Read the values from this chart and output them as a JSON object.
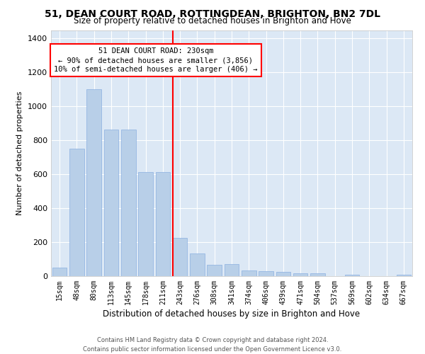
{
  "title": "51, DEAN COURT ROAD, ROTTINGDEAN, BRIGHTON, BN2 7DL",
  "subtitle": "Size of property relative to detached houses in Brighton and Hove",
  "xlabel": "Distribution of detached houses by size in Brighton and Hove",
  "ylabel": "Number of detached properties",
  "bar_values": [
    50,
    750,
    1100,
    865,
    865,
    615,
    615,
    225,
    135,
    65,
    70,
    35,
    30,
    25,
    15,
    15,
    0,
    10,
    0,
    0,
    10
  ],
  "bar_labels": [
    "15sqm",
    "48sqm",
    "80sqm",
    "113sqm",
    "145sqm",
    "178sqm",
    "211sqm",
    "243sqm",
    "276sqm",
    "308sqm",
    "341sqm",
    "374sqm",
    "406sqm",
    "439sqm",
    "471sqm",
    "504sqm",
    "537sqm",
    "569sqm",
    "602sqm",
    "634sqm",
    "667sqm"
  ],
  "bar_color": "#b8cfe8",
  "bar_edge_color": "#8aafe0",
  "vline_color": "red",
  "annotation_text": "51 DEAN COURT ROAD: 230sqm\n← 90% of detached houses are smaller (3,856)\n10% of semi-detached houses are larger (406) →",
  "annotation_box_facecolor": "white",
  "annotation_box_edgecolor": "red",
  "ylim": [
    0,
    1450
  ],
  "yticks": [
    0,
    200,
    400,
    600,
    800,
    1000,
    1200,
    1400
  ],
  "footnote": "Contains HM Land Registry data © Crown copyright and database right 2024.\nContains public sector information licensed under the Open Government Licence v3.0.",
  "background_color": "#dce8f5",
  "grid_color": "white",
  "title_fontsize": 10,
  "subtitle_fontsize": 8.5,
  "xlabel_fontsize": 8.5,
  "ylabel_fontsize": 8,
  "tick_fontsize": 7,
  "annot_fontsize": 7.5,
  "footnote_fontsize": 6
}
